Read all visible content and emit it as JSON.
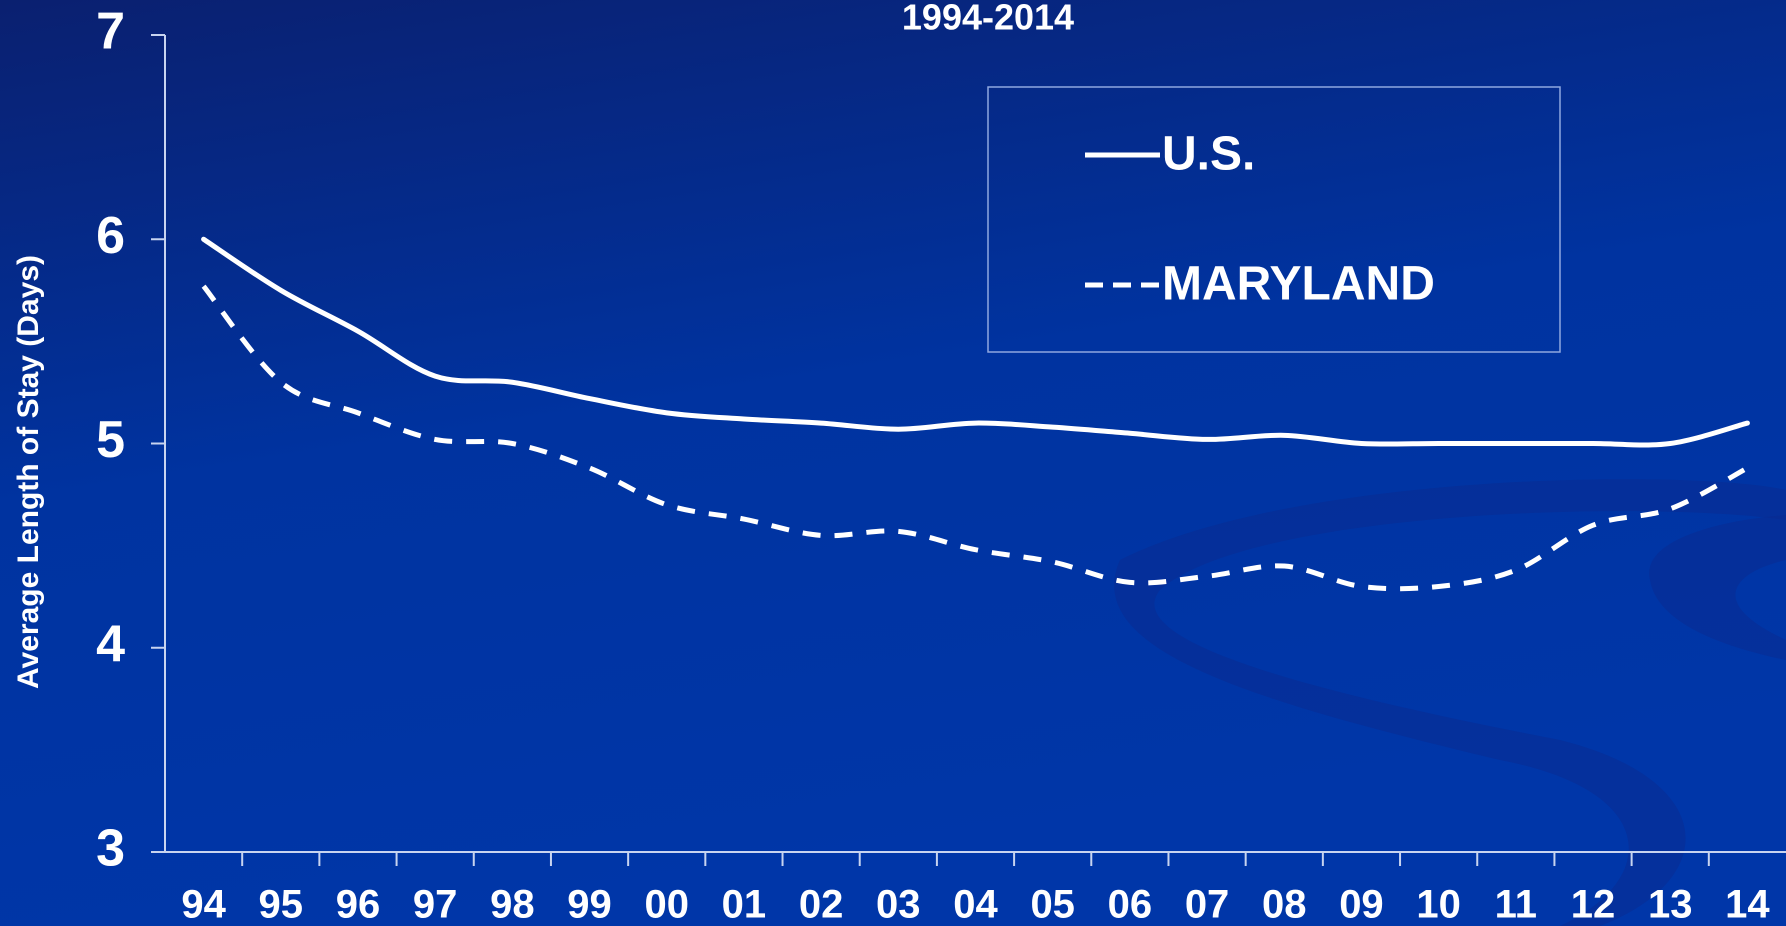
{
  "chart_data": {
    "type": "line",
    "title": "1994-2014",
    "y_label": "Average Length of Stay (Days)",
    "categories": [
      "94",
      "95",
      "96",
      "97",
      "98",
      "99",
      "00",
      "01",
      "02",
      "03",
      "04",
      "05",
      "06",
      "07",
      "08",
      "09",
      "10",
      "11",
      "12",
      "13",
      "14"
    ],
    "series": [
      {
        "name": "U.S.",
        "color": "#ffffff",
        "line_style": "solid",
        "values": [
          6.0,
          5.75,
          5.55,
          5.33,
          5.3,
          5.22,
          5.15,
          5.12,
          5.1,
          5.07,
          5.1,
          5.08,
          5.05,
          5.02,
          5.04,
          5.0,
          5.0,
          5.0,
          5.0,
          5.0,
          5.1
        ]
      },
      {
        "name": "MARYLAND",
        "color": "#ffffff",
        "line_style": "dashed",
        "values": [
          5.77,
          5.3,
          5.15,
          5.02,
          5.0,
          4.88,
          4.7,
          4.63,
          4.55,
          4.57,
          4.48,
          4.42,
          4.32,
          4.35,
          4.4,
          4.3,
          4.3,
          4.38,
          4.6,
          4.68,
          4.88
        ]
      }
    ],
    "ylim": [
      3,
      7
    ],
    "yticks": [
      3,
      4,
      5,
      6,
      7
    ],
    "legend": "upper right"
  }
}
